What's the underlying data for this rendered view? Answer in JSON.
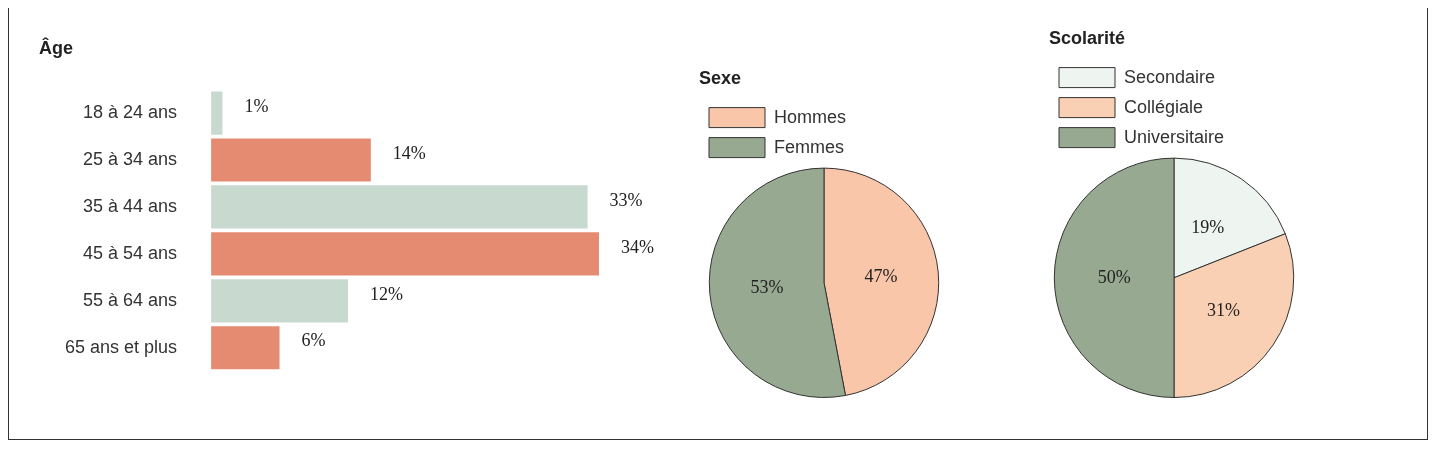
{
  "chart_data": [
    {
      "type": "bar",
      "orientation": "horizontal",
      "title": "Âge",
      "categories": [
        "18 à 24 ans",
        "25 à 34 ans",
        "35 à 44 ans",
        "45 à 54 ans",
        "55 à 64 ans",
        "65 ans et plus"
      ],
      "values": [
        1,
        14,
        33,
        34,
        12,
        6
      ],
      "colors": [
        "#c8dad0",
        "#e48b72",
        "#c8dad0",
        "#e48b72",
        "#c8dad0",
        "#e48b72"
      ],
      "value_labels": [
        "1%",
        "14%",
        "33%",
        "34%",
        "12%",
        "6%"
      ],
      "legend": false
    },
    {
      "type": "pie",
      "title": "Sexe",
      "categories": [
        "Hommes",
        "Femmes"
      ],
      "values": [
        47,
        53
      ],
      "colors": [
        "#f9c6aa",
        "#97a990"
      ],
      "value_labels": [
        "47%",
        "53%"
      ],
      "legend": "top"
    },
    {
      "type": "pie",
      "title": "Scolarité",
      "categories": [
        "Secondaire",
        "Collégiale",
        "Universitaire"
      ],
      "values": [
        19,
        31,
        50
      ],
      "colors": [
        "#eef4f0",
        "#f9d0b4",
        "#97a990"
      ],
      "value_labels": [
        "19%",
        "31%",
        "50%"
      ],
      "legend": "top"
    }
  ]
}
